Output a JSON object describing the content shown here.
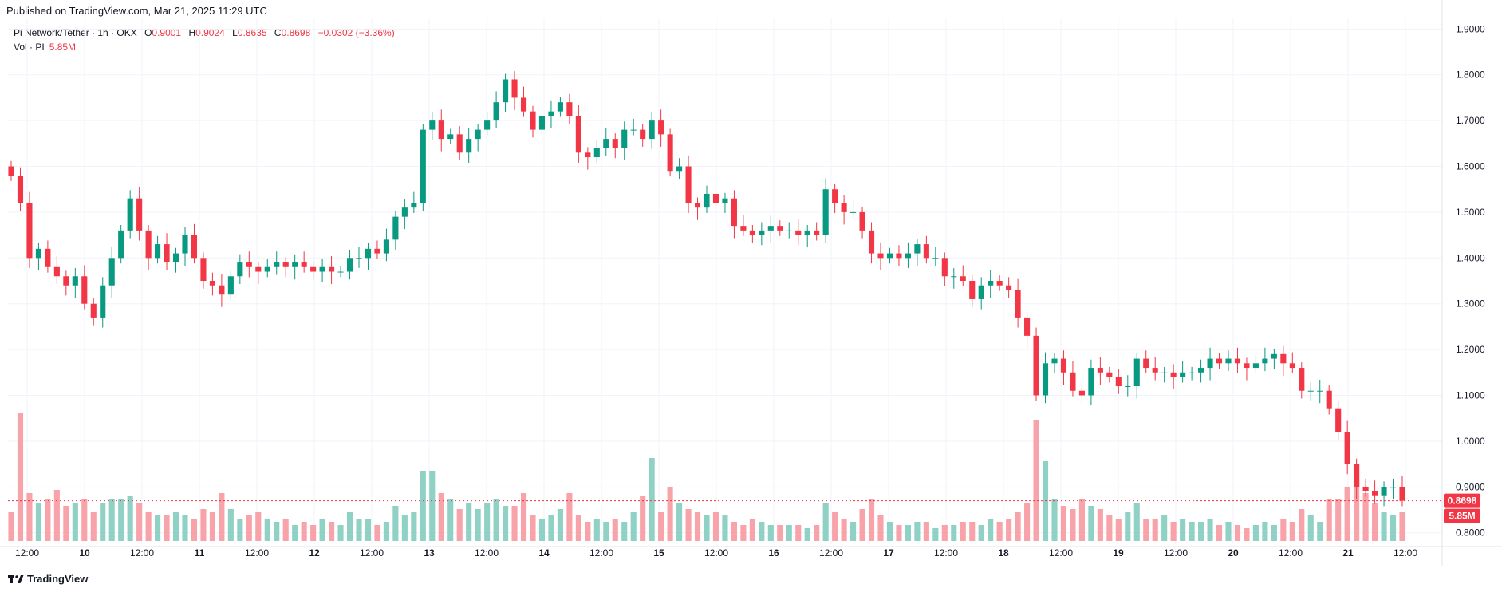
{
  "header": {
    "published": "Published on TradingView.com, Mar 21, 2025 11:29 UTC"
  },
  "legend": {
    "symbol": "Pi Network/Tether · 1h · OKX",
    "open_label": "O",
    "open": "0.9001",
    "high_label": "H",
    "high": "0.9024",
    "low_label": "L",
    "low": "0.8635",
    "close_label": "C",
    "close": "0.8698",
    "change": "−0.0302 (−3.36%)"
  },
  "volume_legend": {
    "label": "Vol · PI",
    "value": "5.85M"
  },
  "brand": {
    "name": "TradingView"
  },
  "colors": {
    "up": "#089981",
    "down": "#f23645",
    "up_vol": "#8fd1c5",
    "down_vol": "#f8a3a9",
    "grid": "#f0f3fa"
  },
  "chart_data": {
    "type": "candlestick",
    "price_axis": {
      "ticks": [
        "1.9000",
        "1.8000",
        "1.7000",
        "1.6000",
        "1.5000",
        "1.4000",
        "1.3000",
        "1.2000",
        "1.1000",
        "1.0000",
        "0.9000",
        "0.8000"
      ],
      "ylim": [
        0.775,
        1.925
      ]
    },
    "time_axis": {
      "ticks": [
        "12:00",
        "10",
        "12:00",
        "11",
        "12:00",
        "12",
        "12:00",
        "13",
        "12:00",
        "14",
        "12:00",
        "15",
        "12:00",
        "16",
        "12:00",
        "17",
        "12:00",
        "18",
        "12:00",
        "19",
        "12:00",
        "20",
        "12:00",
        "21",
        "12:00"
      ]
    },
    "last_price": "0.8698",
    "last_volume": "5.85M",
    "series": [
      {
        "name": "Pi Network/Tether",
        "close": [
          1.58,
          1.52,
          1.4,
          1.42,
          1.38,
          1.36,
          1.34,
          1.36,
          1.3,
          1.27,
          1.34,
          1.4,
          1.46,
          1.53,
          1.46,
          1.4,
          1.43,
          1.39,
          1.41,
          1.45,
          1.4,
          1.35,
          1.34,
          1.32,
          1.36,
          1.39,
          1.38,
          1.37,
          1.38,
          1.39,
          1.38,
          1.39,
          1.38,
          1.37,
          1.38,
          1.37,
          1.37,
          1.4,
          1.4,
          1.42,
          1.41,
          1.44,
          1.49,
          1.51,
          1.52,
          1.68,
          1.7,
          1.66,
          1.67,
          1.63,
          1.66,
          1.68,
          1.7,
          1.74,
          1.79,
          1.75,
          1.72,
          1.68,
          1.71,
          1.72,
          1.74,
          1.71,
          1.63,
          1.62,
          1.64,
          1.66,
          1.64,
          1.68,
          1.68,
          1.66,
          1.7,
          1.67,
          1.59,
          1.6,
          1.52,
          1.51,
          1.54,
          1.52,
          1.53,
          1.47,
          1.46,
          1.45,
          1.46,
          1.47,
          1.46,
          1.46,
          1.45,
          1.46,
          1.45,
          1.55,
          1.52,
          1.5,
          1.5,
          1.46,
          1.41,
          1.4,
          1.41,
          1.4,
          1.41,
          1.43,
          1.4,
          1.4,
          1.36,
          1.36,
          1.35,
          1.31,
          1.34,
          1.35,
          1.34,
          1.33,
          1.27,
          1.23,
          1.1,
          1.17,
          1.18,
          1.15,
          1.11,
          1.1,
          1.16,
          1.15,
          1.14,
          1.12,
          1.12,
          1.18,
          1.16,
          1.15,
          1.15,
          1.14,
          1.15,
          1.15,
          1.16,
          1.18,
          1.17,
          1.18,
          1.17,
          1.16,
          1.17,
          1.18,
          1.19,
          1.17,
          1.16,
          1.11,
          1.11,
          1.11,
          1.07,
          1.02,
          0.95,
          0.9,
          0.89,
          0.88,
          0.9,
          0.9,
          0.8698
        ]
      },
      {
        "name": "Volume",
        "values": [
          0.9,
          4.0,
          1.5,
          1.2,
          1.3,
          1.6,
          1.1,
          1.2,
          1.3,
          0.9,
          1.2,
          1.3,
          1.3,
          1.4,
          1.2,
          0.9,
          0.8,
          0.8,
          0.9,
          0.8,
          0.7,
          1.0,
          0.9,
          1.5,
          1.0,
          0.7,
          0.8,
          0.9,
          0.7,
          0.6,
          0.7,
          0.5,
          0.6,
          0.5,
          0.7,
          0.6,
          0.5,
          0.9,
          0.7,
          0.7,
          0.5,
          0.6,
          1.1,
          0.8,
          0.9,
          2.2,
          2.2,
          1.5,
          1.3,
          1.0,
          1.2,
          1.0,
          1.2,
          1.3,
          1.1,
          1.1,
          1.5,
          0.8,
          0.7,
          0.8,
          1.0,
          1.5,
          0.8,
          0.6,
          0.7,
          0.6,
          0.7,
          0.6,
          0.9,
          1.4,
          2.6,
          0.9,
          1.7,
          1.2,
          1.0,
          0.9,
          0.8,
          0.9,
          0.8,
          0.6,
          0.5,
          0.7,
          0.6,
          0.5,
          0.5,
          0.5,
          0.5,
          0.4,
          0.5,
          1.2,
          0.9,
          0.7,
          0.6,
          1.0,
          1.3,
          0.8,
          0.6,
          0.5,
          0.5,
          0.6,
          0.6,
          0.4,
          0.5,
          0.5,
          0.6,
          0.6,
          0.5,
          0.7,
          0.6,
          0.7,
          0.9,
          1.2,
          3.8,
          2.5,
          1.3,
          1.1,
          1.0,
          1.3,
          1.1,
          1.0,
          0.8,
          0.7,
          0.9,
          1.2,
          0.7,
          0.7,
          0.8,
          0.6,
          0.7,
          0.6,
          0.6,
          0.7,
          0.5,
          0.6,
          0.5,
          0.4,
          0.5,
          0.6,
          0.5,
          0.7,
          0.6,
          1.0,
          0.8,
          0.6,
          1.3,
          1.3,
          1.7,
          1.9,
          1.5,
          1.2,
          0.9,
          0.8,
          0.9
        ]
      }
    ]
  }
}
